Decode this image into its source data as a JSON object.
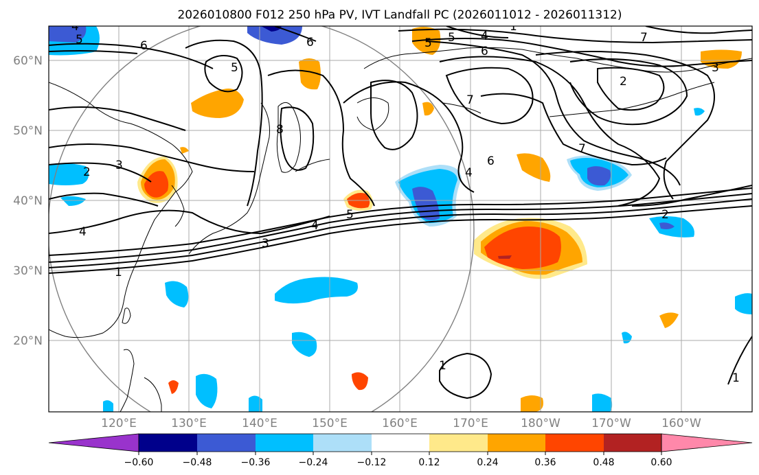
{
  "title": "2026010800 F012 250 hPa PV, IVT Landfall PC (2026011012 - 2026011312)",
  "lat_labels": [
    "60°N",
    "50°N",
    "40°N",
    "30°N",
    "20°N"
  ],
  "lon_labels": [
    "120°E",
    "130°E",
    "140°E",
    "150°E",
    "160°E",
    "170°E",
    "180°W",
    "170°W",
    "160°W"
  ],
  "colorbar": {
    "ticks": [
      "−0.60",
      "−0.48",
      "−0.36",
      "−0.24",
      "−0.12",
      "0.12",
      "0.24",
      "0.36",
      "0.48",
      "0.60"
    ],
    "colors": [
      "#9933cc",
      "#00008b",
      "#3c5ad4",
      "#00bfff",
      "#addff8",
      "#ffffff",
      "#ffe98a",
      "#ffa500",
      "#ff4500",
      "#b22222",
      "#ff88aa"
    ]
  },
  "contour_labels": [
    "4",
    "5",
    "6",
    "5",
    "4",
    "5",
    "6",
    "7",
    "3",
    "2",
    "6",
    "7",
    "2",
    "3",
    "4",
    "5",
    "1",
    "5",
    "3",
    "4",
    "7",
    "8",
    "6",
    "4",
    "2",
    "1",
    "1",
    "1"
  ],
  "map_projection_note": ""
}
